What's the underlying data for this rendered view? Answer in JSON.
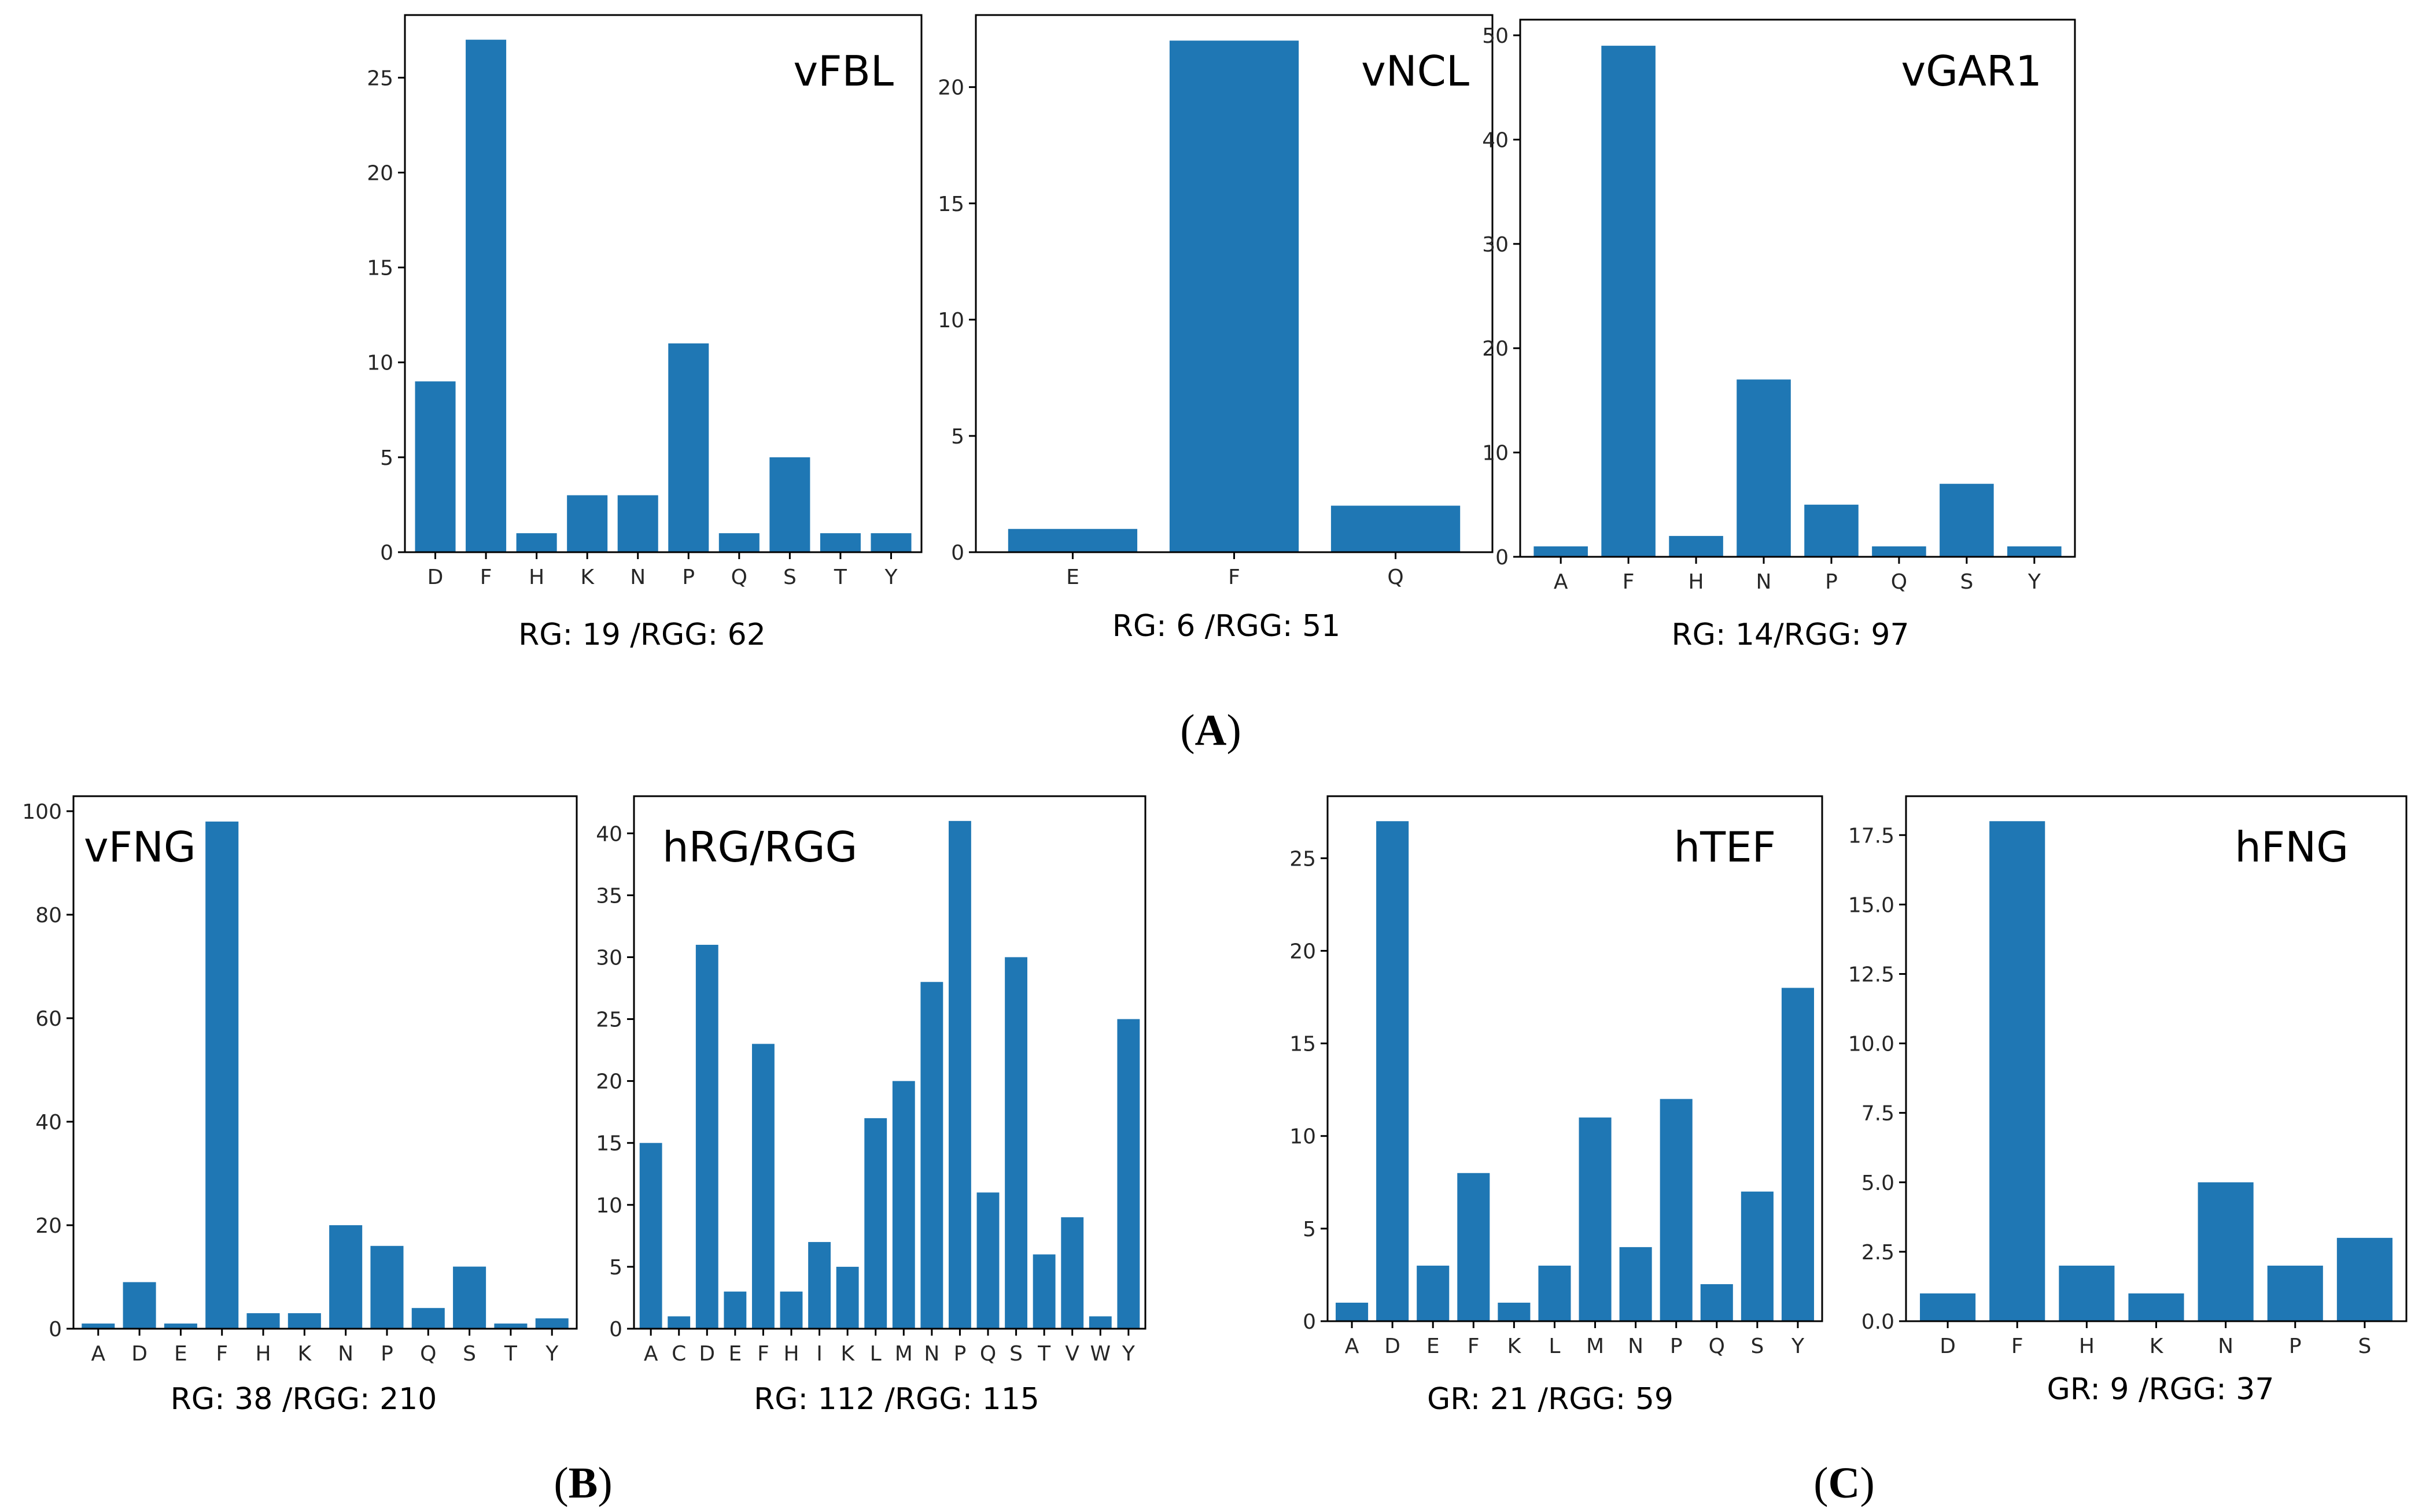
{
  "colors": {
    "bar": "#1f77b4",
    "axis": "#000000",
    "text": "#262626"
  },
  "part_labels": {
    "A": "A",
    "B": "B",
    "C": "C"
  },
  "chart_data": [
    {
      "type": "bar",
      "title": "vFBL",
      "caption": "RG: 19 /RGG: 62",
      "categories": [
        "D",
        "F",
        "H",
        "K",
        "N",
        "P",
        "Q",
        "S",
        "T",
        "Y"
      ],
      "values": [
        9,
        27,
        1,
        3,
        3,
        11,
        1,
        5,
        1,
        1
      ],
      "ylim": [
        0,
        28.3
      ],
      "yticks": [
        0,
        5,
        10,
        15,
        20,
        25
      ],
      "ytick_labels": [
        "0",
        "5",
        "10",
        "15",
        "20",
        "25"
      ]
    },
    {
      "type": "bar",
      "title": "vNCL",
      "caption": "RG: 6 /RGG: 51",
      "categories": [
        "E",
        "F",
        "Q"
      ],
      "values": [
        1,
        22,
        2
      ],
      "ylim": [
        0,
        23.1
      ],
      "yticks": [
        0,
        5,
        10,
        15,
        20
      ],
      "ytick_labels": [
        "0",
        "5",
        "10",
        "15",
        "20"
      ]
    },
    {
      "type": "bar",
      "title": "vGAR1",
      "caption": "RG: 14/RGG: 97",
      "categories": [
        "A",
        "F",
        "H",
        "N",
        "P",
        "Q",
        "S",
        "Y"
      ],
      "values": [
        1,
        49,
        2,
        17,
        5,
        1,
        7,
        1
      ],
      "ylim": [
        0,
        51.5
      ],
      "yticks": [
        0,
        10,
        20,
        30,
        40,
        50
      ],
      "ytick_labels": [
        "0",
        "10",
        "20",
        "30",
        "40",
        "50"
      ]
    },
    {
      "type": "bar",
      "title": "vFNG",
      "caption": "RG: 38 /RGG: 210",
      "categories": [
        "A",
        "D",
        "E",
        "F",
        "H",
        "K",
        "N",
        "P",
        "Q",
        "S",
        "T",
        "Y"
      ],
      "values": [
        1,
        9,
        1,
        98,
        3,
        3,
        20,
        16,
        4,
        12,
        1,
        2
      ],
      "ylim": [
        0,
        102.9
      ],
      "yticks": [
        0,
        20,
        40,
        60,
        80,
        100
      ],
      "ytick_labels": [
        "0",
        "20",
        "40",
        "60",
        "80",
        "100"
      ]
    },
    {
      "type": "bar",
      "title": "hRG/RGG",
      "caption": "RG: 112 /RGG: 115",
      "categories": [
        "A",
        "C",
        "D",
        "E",
        "F",
        "H",
        "I",
        "K",
        "L",
        "M",
        "N",
        "P",
        "Q",
        "S",
        "T",
        "V",
        "W",
        "Y"
      ],
      "values": [
        15,
        1,
        31,
        3,
        23,
        3,
        7,
        5,
        17,
        20,
        28,
        41,
        11,
        30,
        6,
        9,
        1,
        25
      ],
      "ylim": [
        0,
        43
      ],
      "yticks": [
        0,
        5,
        10,
        15,
        20,
        25,
        30,
        35,
        40
      ],
      "ytick_labels": [
        "0",
        "5",
        "10",
        "15",
        "20",
        "25",
        "30",
        "35",
        "40"
      ]
    },
    {
      "type": "bar",
      "title": "hTEF",
      "caption": "GR: 21 /RGG: 59",
      "categories": [
        "A",
        "D",
        "E",
        "F",
        "K",
        "L",
        "M",
        "N",
        "P",
        "Q",
        "S",
        "Y"
      ],
      "values": [
        1,
        27,
        3,
        8,
        1,
        3,
        11,
        4,
        12,
        2,
        7,
        18
      ],
      "ylim": [
        0,
        28.35
      ],
      "yticks": [
        0,
        5,
        10,
        15,
        20,
        25
      ],
      "ytick_labels": [
        "0",
        "5",
        "10",
        "15",
        "20",
        "25"
      ]
    },
    {
      "type": "bar",
      "title": "hFNG",
      "caption": "GR: 9 /RGG: 37",
      "categories": [
        "D",
        "F",
        "H",
        "K",
        "N",
        "P",
        "S"
      ],
      "values": [
        1,
        18,
        2,
        1,
        5,
        2,
        3
      ],
      "ylim": [
        0,
        18.9
      ],
      "yticks": [
        0,
        2.5,
        5,
        7.5,
        10,
        12.5,
        15,
        17.5
      ],
      "ytick_labels": [
        "0.0",
        "2.5",
        "5.0",
        "7.5",
        "10.0",
        "12.5",
        "15.0",
        "17.5"
      ]
    }
  ]
}
